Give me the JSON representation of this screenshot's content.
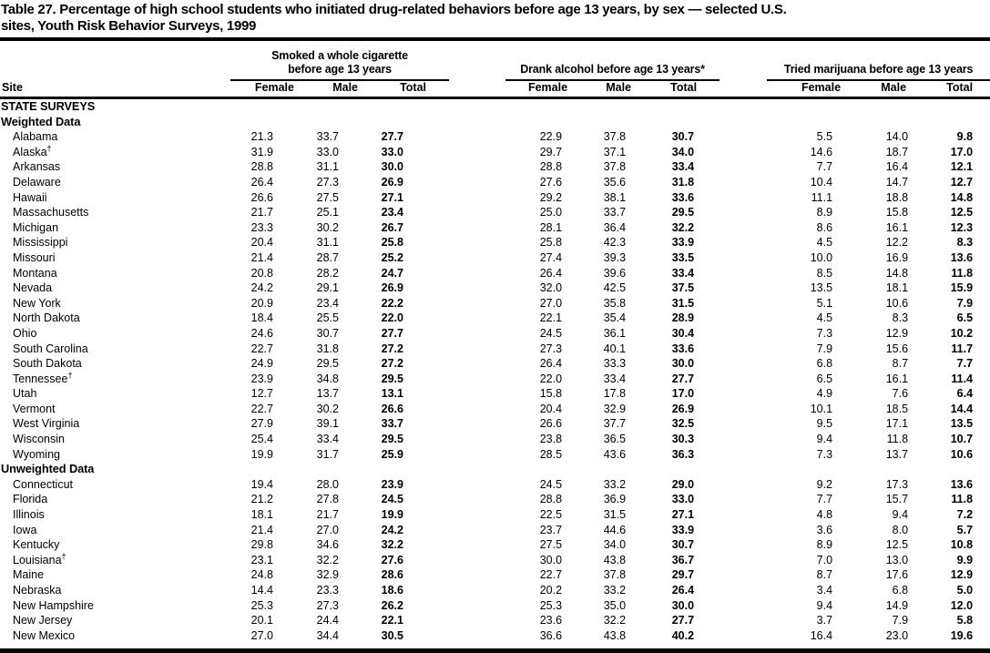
{
  "header": {
    "title_lines": [
      "Table 27. Percentage of high school students who initiated drug-related behaviors before age 13 years, by sex — selected U.S.",
      "sites, Youth Risk Behavior Surveys, 1999"
    ]
  },
  "table": {
    "site_header": "Site",
    "column_groups": [
      {
        "label_lines": [
          "Smoked a whole cigarette",
          "before age 13 years"
        ]
      },
      {
        "label_lines": [
          "Drank alcohol before age 13 years*"
        ]
      },
      {
        "label_lines": [
          "Tried marijuana before age 13 years"
        ]
      }
    ],
    "sub_headers": [
      "Female",
      "Male",
      "Total"
    ],
    "sections": [
      {
        "heading": "STATE SURVEYS",
        "rows": []
      },
      {
        "heading": "Weighted Data",
        "rows": [
          {
            "site": "Alabama",
            "marker": "",
            "values": [
              [
                "21.3",
                "33.7",
                "27.7"
              ],
              [
                "22.9",
                "37.8",
                "30.7"
              ],
              [
                "5.5",
                "14.0",
                "9.8"
              ]
            ]
          },
          {
            "site": "Alaska",
            "marker": "†",
            "values": [
              [
                "31.9",
                "33.0",
                "33.0"
              ],
              [
                "29.7",
                "37.1",
                "34.0"
              ],
              [
                "14.6",
                "18.7",
                "17.0"
              ]
            ]
          },
          {
            "site": "Arkansas",
            "marker": "",
            "values": [
              [
                "28.8",
                "31.1",
                "30.0"
              ],
              [
                "28.8",
                "37.8",
                "33.4"
              ],
              [
                "7.7",
                "16.4",
                "12.1"
              ]
            ]
          },
          {
            "site": "Delaware",
            "marker": "",
            "values": [
              [
                "26.4",
                "27.3",
                "26.9"
              ],
              [
                "27.6",
                "35.6",
                "31.8"
              ],
              [
                "10.4",
                "14.7",
                "12.7"
              ]
            ]
          },
          {
            "site": "Hawaii",
            "marker": "",
            "values": [
              [
                "26.6",
                "27.5",
                "27.1"
              ],
              [
                "29.2",
                "38.1",
                "33.6"
              ],
              [
                "11.1",
                "18.8",
                "14.8"
              ]
            ]
          },
          {
            "site": "Massachusetts",
            "marker": "",
            "values": [
              [
                "21.7",
                "25.1",
                "23.4"
              ],
              [
                "25.0",
                "33.7",
                "29.5"
              ],
              [
                "8.9",
                "15.8",
                "12.5"
              ]
            ]
          },
          {
            "site": "Michigan",
            "marker": "",
            "values": [
              [
                "23.3",
                "30.2",
                "26.7"
              ],
              [
                "28.1",
                "36.4",
                "32.2"
              ],
              [
                "8.6",
                "16.1",
                "12.3"
              ]
            ]
          },
          {
            "site": "Mississippi",
            "marker": "",
            "values": [
              [
                "20.4",
                "31.1",
                "25.8"
              ],
              [
                "25.8",
                "42.3",
                "33.9"
              ],
              [
                "4.5",
                "12.2",
                "8.3"
              ]
            ]
          },
          {
            "site": "Missouri",
            "marker": "",
            "values": [
              [
                "21.4",
                "28.7",
                "25.2"
              ],
              [
                "27.4",
                "39.3",
                "33.5"
              ],
              [
                "10.0",
                "16.9",
                "13.6"
              ]
            ]
          },
          {
            "site": "Montana",
            "marker": "",
            "values": [
              [
                "20.8",
                "28.2",
                "24.7"
              ],
              [
                "26.4",
                "39.6",
                "33.4"
              ],
              [
                "8.5",
                "14.8",
                "11.8"
              ]
            ]
          },
          {
            "site": "Nevada",
            "marker": "",
            "values": [
              [
                "24.2",
                "29.1",
                "26.9"
              ],
              [
                "32.0",
                "42.5",
                "37.5"
              ],
              [
                "13.5",
                "18.1",
                "15.9"
              ]
            ]
          },
          {
            "site": "New York",
            "marker": "",
            "values": [
              [
                "20.9",
                "23.4",
                "22.2"
              ],
              [
                "27.0",
                "35.8",
                "31.5"
              ],
              [
                "5.1",
                "10.6",
                "7.9"
              ]
            ]
          },
          {
            "site": "North Dakota",
            "marker": "",
            "values": [
              [
                "18.4",
                "25.5",
                "22.0"
              ],
              [
                "22.1",
                "35.4",
                "28.9"
              ],
              [
                "4.5",
                "8.3",
                "6.5"
              ]
            ]
          },
          {
            "site": "Ohio",
            "marker": "",
            "values": [
              [
                "24.6",
                "30.7",
                "27.7"
              ],
              [
                "24.5",
                "36.1",
                "30.4"
              ],
              [
                "7.3",
                "12.9",
                "10.2"
              ]
            ]
          },
          {
            "site": "South Carolina",
            "marker": "",
            "values": [
              [
                "22.7",
                "31.8",
                "27.2"
              ],
              [
                "27.3",
                "40.1",
                "33.6"
              ],
              [
                "7.9",
                "15.6",
                "11.7"
              ]
            ]
          },
          {
            "site": "South Dakota",
            "marker": "",
            "values": [
              [
                "24.9",
                "29.5",
                "27.2"
              ],
              [
                "26.4",
                "33.3",
                "30.0"
              ],
              [
                "6.8",
                "8.7",
                "7.7"
              ]
            ]
          },
          {
            "site": "Tennessee",
            "marker": "†",
            "values": [
              [
                "23.9",
                "34.8",
                "29.5"
              ],
              [
                "22.0",
                "33.4",
                "27.7"
              ],
              [
                "6.5",
                "16.1",
                "11.4"
              ]
            ]
          },
          {
            "site": "Utah",
            "marker": "",
            "values": [
              [
                "12.7",
                "13.7",
                "13.1"
              ],
              [
                "15.8",
                "17.8",
                "17.0"
              ],
              [
                "4.9",
                "7.6",
                "6.4"
              ]
            ]
          },
          {
            "site": "Vermont",
            "marker": "",
            "values": [
              [
                "22.7",
                "30.2",
                "26.6"
              ],
              [
                "20.4",
                "32.9",
                "26.9"
              ],
              [
                "10.1",
                "18.5",
                "14.4"
              ]
            ]
          },
          {
            "site": "West Virginia",
            "marker": "",
            "values": [
              [
                "27.9",
                "39.1",
                "33.7"
              ],
              [
                "26.6",
                "37.7",
                "32.5"
              ],
              [
                "9.5",
                "17.1",
                "13.5"
              ]
            ]
          },
          {
            "site": "Wisconsin",
            "marker": "",
            "values": [
              [
                "25.4",
                "33.4",
                "29.5"
              ],
              [
                "23.8",
                "36.5",
                "30.3"
              ],
              [
                "9.4",
                "11.8",
                "10.7"
              ]
            ]
          },
          {
            "site": "Wyoming",
            "marker": "",
            "values": [
              [
                "19.9",
                "31.7",
                "25.9"
              ],
              [
                "28.5",
                "43.6",
                "36.3"
              ],
              [
                "7.3",
                "13.7",
                "10.6"
              ]
            ]
          }
        ]
      },
      {
        "heading": "Unweighted Data",
        "rows": [
          {
            "site": "Connecticut",
            "marker": "",
            "values": [
              [
                "19.4",
                "28.0",
                "23.9"
              ],
              [
                "24.5",
                "33.2",
                "29.0"
              ],
              [
                "9.2",
                "17.3",
                "13.6"
              ]
            ]
          },
          {
            "site": "Florida",
            "marker": "",
            "values": [
              [
                "21.2",
                "27.8",
                "24.5"
              ],
              [
                "28.8",
                "36.9",
                "33.0"
              ],
              [
                "7.7",
                "15.7",
                "11.8"
              ]
            ]
          },
          {
            "site": "Illinois",
            "marker": "",
            "values": [
              [
                "18.1",
                "21.7",
                "19.9"
              ],
              [
                "22.5",
                "31.5",
                "27.1"
              ],
              [
                "4.8",
                "9.4",
                "7.2"
              ]
            ]
          },
          {
            "site": "Iowa",
            "marker": "",
            "values": [
              [
                "21.4",
                "27.0",
                "24.2"
              ],
              [
                "23.7",
                "44.6",
                "33.9"
              ],
              [
                "3.6",
                "8.0",
                "5.7"
              ]
            ]
          },
          {
            "site": "Kentucky",
            "marker": "",
            "values": [
              [
                "29.8",
                "34.6",
                "32.2"
              ],
              [
                "27.5",
                "34.0",
                "30.7"
              ],
              [
                "8.9",
                "12.5",
                "10.8"
              ]
            ]
          },
          {
            "site": "Louisiana",
            "marker": "†",
            "values": [
              [
                "23.1",
                "32.2",
                "27.6"
              ],
              [
                "30.0",
                "43.8",
                "36.7"
              ],
              [
                "7.0",
                "13.0",
                "9.9"
              ]
            ]
          },
          {
            "site": "Maine",
            "marker": "",
            "values": [
              [
                "24.8",
                "32.9",
                "28.6"
              ],
              [
                "22.7",
                "37.8",
                "29.7"
              ],
              [
                "8.7",
                "17.6",
                "12.9"
              ]
            ]
          },
          {
            "site": "Nebraska",
            "marker": "",
            "values": [
              [
                "14.4",
                "23.3",
                "18.6"
              ],
              [
                "20.2",
                "33.2",
                "26.4"
              ],
              [
                "3.4",
                "6.8",
                "5.0"
              ]
            ]
          },
          {
            "site": "New Hampshire",
            "marker": "",
            "values": [
              [
                "25.3",
                "27.3",
                "26.2"
              ],
              [
                "25.3",
                "35.0",
                "30.0"
              ],
              [
                "9.4",
                "14.9",
                "12.0"
              ]
            ]
          },
          {
            "site": "New Jersey",
            "marker": "",
            "values": [
              [
                "20.1",
                "24.4",
                "22.1"
              ],
              [
                "23.6",
                "32.2",
                "27.7"
              ],
              [
                "3.7",
                "7.9",
                "5.8"
              ]
            ]
          },
          {
            "site": "New Mexico",
            "marker": "",
            "values": [
              [
                "27.0",
                "34.4",
                "30.5"
              ],
              [
                "36.6",
                "43.8",
                "40.2"
              ],
              [
                "16.4",
                "23.0",
                "19.6"
              ]
            ]
          }
        ]
      }
    ]
  }
}
